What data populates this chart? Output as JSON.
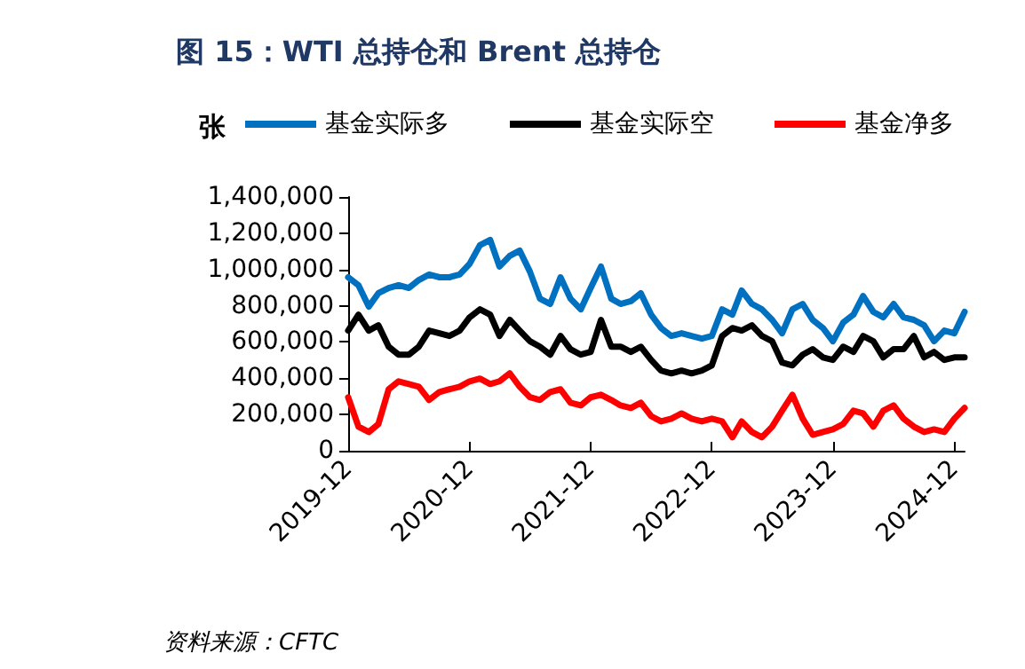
{
  "chart_data": {
    "type": "line",
    "title": "图 15：WTI 总持仓和 Brent 总持仓",
    "ylabel": "张",
    "annotations": [
      "资料来源：CFTC"
    ],
    "x": [
      "2019-12",
      "2020-01",
      "2020-02",
      "2020-03",
      "2020-04",
      "2020-05",
      "2020-06",
      "2020-07",
      "2020-08",
      "2020-09",
      "2020-10",
      "2020-11",
      "2020-12",
      "2021-01",
      "2021-02",
      "2021-03",
      "2021-04",
      "2021-05",
      "2021-06",
      "2021-07",
      "2021-08",
      "2021-09",
      "2021-10",
      "2021-11",
      "2021-12",
      "2022-01",
      "2022-02",
      "2022-03",
      "2022-04",
      "2022-05",
      "2022-06",
      "2022-07",
      "2022-08",
      "2022-09",
      "2022-10",
      "2022-11",
      "2022-12",
      "2023-01",
      "2023-02",
      "2023-03",
      "2023-04",
      "2023-05",
      "2023-06",
      "2023-07",
      "2023-08",
      "2023-09",
      "2023-10",
      "2023-11",
      "2023-12",
      "2024-01",
      "2024-02",
      "2024-03",
      "2024-04",
      "2024-05",
      "2024-06",
      "2024-07",
      "2024-08",
      "2024-09",
      "2024-10",
      "2024-11",
      "2024-12",
      "2025-01"
    ],
    "series": [
      {
        "name": "基金实际多",
        "color": "#0070c0",
        "values": [
          957000,
          913000,
          795000,
          869000,
          898000,
          913000,
          898000,
          942000,
          972000,
          957000,
          957000,
          972000,
          1031000,
          1134000,
          1163000,
          1016000,
          1075000,
          1104000,
          987000,
          839000,
          810000,
          957000,
          839000,
          780000,
          898000,
          1016000,
          839000,
          810000,
          825000,
          869000,
          751000,
          677000,
          633000,
          648000,
          633000,
          619000,
          633000,
          780000,
          751000,
          884000,
          810000,
          780000,
          722000,
          648000,
          780000,
          810000,
          722000,
          677000,
          604000,
          707000,
          751000,
          854000,
          766000,
          736000,
          810000,
          736000,
          722000,
          692000,
          604000,
          663000,
          648000,
          766000
        ]
      },
      {
        "name": "基金实际空",
        "color": "#000000",
        "values": [
          663000,
          751000,
          663000,
          692000,
          574000,
          530000,
          530000,
          574000,
          663000,
          648000,
          633000,
          663000,
          736000,
          780000,
          751000,
          633000,
          722000,
          663000,
          604000,
          574000,
          530000,
          633000,
          560000,
          530000,
          545000,
          722000,
          574000,
          574000,
          545000,
          574000,
          501000,
          442000,
          427000,
          442000,
          427000,
          442000,
          471000,
          633000,
          677000,
          663000,
          692000,
          633000,
          604000,
          486000,
          471000,
          530000,
          560000,
          515000,
          501000,
          574000,
          545000,
          633000,
          604000,
          515000,
          560000,
          560000,
          633000,
          515000,
          545000,
          501000,
          515000,
          515000
        ]
      },
      {
        "name": "基金净多",
        "color": "#ff0000",
        "values": [
          295000,
          133000,
          103000,
          147000,
          339000,
          383000,
          368000,
          353000,
          280000,
          324000,
          339000,
          353000,
          383000,
          398000,
          368000,
          383000,
          427000,
          353000,
          295000,
          280000,
          324000,
          339000,
          265000,
          250000,
          295000,
          309000,
          280000,
          250000,
          236000,
          265000,
          191000,
          162000,
          177000,
          206000,
          177000,
          162000,
          177000,
          162000,
          74000,
          162000,
          103000,
          74000,
          133000,
          221000,
          309000,
          177000,
          88000,
          103000,
          118000,
          147000,
          221000,
          206000,
          133000,
          221000,
          250000,
          177000,
          133000,
          103000,
          118000,
          103000,
          177000,
          236000
        ]
      }
    ],
    "xlim": [
      "2019-12",
      "2025-01"
    ],
    "xticks": [
      "2019-12",
      "2020-12",
      "2021-12",
      "2022-12",
      "2023-12",
      "2024-12"
    ],
    "ylim": [
      0,
      1400000
    ],
    "yticks": [
      {
        "value": 0,
        "label": "0"
      },
      {
        "value": 200000,
        "label": "200,000"
      },
      {
        "value": 400000,
        "label": "400,000"
      },
      {
        "value": 600000,
        "label": "600,000"
      },
      {
        "value": 800000,
        "label": "800,000"
      },
      {
        "value": 1000000,
        "label": "1,000,000"
      },
      {
        "value": 1200000,
        "label": "1,200,000"
      },
      {
        "value": 1400000,
        "label": "1,400,000"
      }
    ],
    "grid": false,
    "legend": "top",
    "marker": "none",
    "line_style": "solid"
  }
}
